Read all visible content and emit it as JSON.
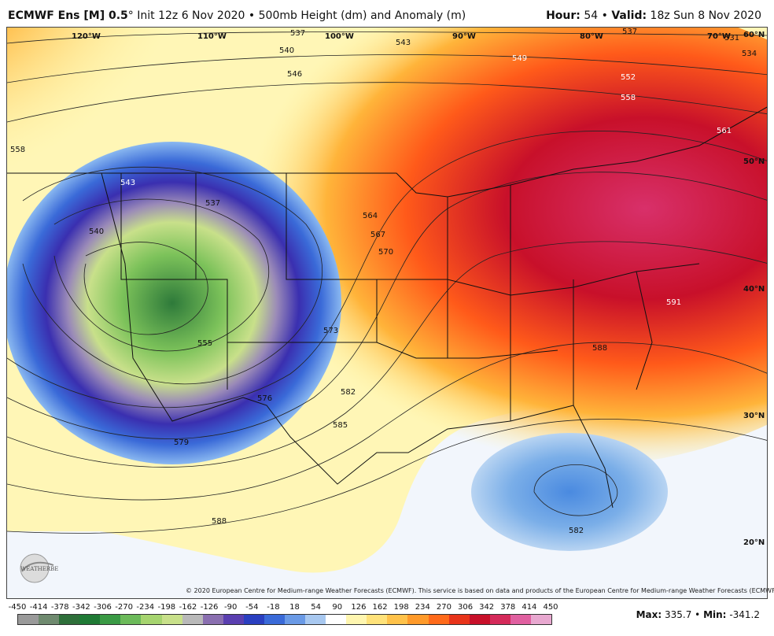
{
  "header": {
    "model": "ECMWF Ens [M] 0.5",
    "degree": "°",
    "run": "Init 12z 6 Nov 2020",
    "sep": "•",
    "product": "500mb Height (dm) and Anomaly (m)",
    "hour_label": "Hour:",
    "hour_value": "54",
    "valid_label": "Valid:",
    "valid_value": "18z Sun 8 Nov 2020"
  },
  "map": {
    "longitudes": [
      "120°W",
      "110°W",
      "100°W",
      "90°W",
      "80°W",
      "70°W"
    ],
    "latitudes": [
      "60°N",
      "50°N",
      "40°N",
      "30°N",
      "20°N"
    ],
    "contour_labels": [
      "537",
      "540",
      "543",
      "546",
      "549",
      "552",
      "558",
      "561",
      "531",
      "534",
      "537",
      "543",
      "540",
      "537",
      "555",
      "564",
      "567",
      "570",
      "573",
      "576",
      "579",
      "582",
      "585",
      "588",
      "591",
      "588",
      "582",
      "558"
    ],
    "copyright": "© 2020 European Centre for Medium-range Weather Forecasts (ECMWF). This service is based on data and products of the European Centre for Medium-range Weather Forecasts (ECMWF).",
    "logo_text": "WEATHERBELL"
  },
  "legend": {
    "ticks": [
      "-450",
      "-414",
      "-378",
      "-342",
      "-306",
      "-270",
      "-234",
      "-198",
      "-162",
      "-126",
      "-90",
      "-54",
      "-18",
      "18",
      "54",
      "90",
      "126",
      "162",
      "198",
      "234",
      "270",
      "306",
      "342",
      "378",
      "414",
      "450"
    ],
    "colors": [
      "#9a9a9a",
      "#6f8a6f",
      "#2e6f3a",
      "#1f7a35",
      "#3a9a45",
      "#6cba5a",
      "#a6d46f",
      "#c8e08a",
      "#b9b9b9",
      "#8a6fb0",
      "#5a3fb0",
      "#2a3fc0",
      "#3a6ad8",
      "#6a9ae6",
      "#a8c8f0",
      "#ffffff",
      "#fff6b0",
      "#ffe27a",
      "#ffc24a",
      "#ff9a2a",
      "#ff6a1a",
      "#e8341a",
      "#c8102a",
      "#d42a5a",
      "#e060a0",
      "#e8a8d0"
    ],
    "max_label": "Max:",
    "max_value": "335.7",
    "min_label": "Min:",
    "min_value": "-341.2"
  }
}
